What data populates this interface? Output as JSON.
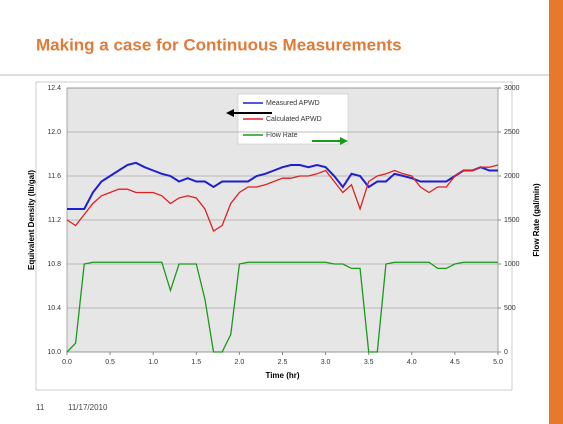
{
  "chart_data": {
    "type": "line",
    "title": "Making a case for Continuous Measurements",
    "xlabel": "Time (hr)",
    "ylabel": "Equivalent Density (lb/gal)",
    "y2label": "Flow Rate (gal/min)",
    "x": [
      0.0,
      0.1,
      0.2,
      0.3,
      0.4,
      0.5,
      0.6,
      0.7,
      0.8,
      0.9,
      1.0,
      1.1,
      1.2,
      1.3,
      1.4,
      1.5,
      1.6,
      1.7,
      1.8,
      1.9,
      2.0,
      2.1,
      2.2,
      2.3,
      2.4,
      2.5,
      2.6,
      2.7,
      2.8,
      2.9,
      3.0,
      3.1,
      3.2,
      3.3,
      3.4,
      3.5,
      3.6,
      3.7,
      3.8,
      3.9,
      4.0,
      4.1,
      4.2,
      4.3,
      4.4,
      4.5,
      4.6,
      4.7,
      4.8,
      4.9,
      5.0
    ],
    "series": [
      {
        "name": "Measured APWD",
        "color": "#1f1fd0",
        "values": [
          11.3,
          11.3,
          11.3,
          11.45,
          11.55,
          11.6,
          11.65,
          11.7,
          11.72,
          11.68,
          11.65,
          11.62,
          11.6,
          11.55,
          11.58,
          11.55,
          11.55,
          11.5,
          11.55,
          11.55,
          11.55,
          11.55,
          11.6,
          11.62,
          11.65,
          11.68,
          11.7,
          11.7,
          11.68,
          11.7,
          11.68,
          11.6,
          11.5,
          11.62,
          11.6,
          11.5,
          11.55,
          11.55,
          11.62,
          11.6,
          11.58,
          11.55,
          11.55,
          11.55,
          11.55,
          11.6,
          11.65,
          11.65,
          11.68,
          11.65,
          11.65
        ]
      },
      {
        "name": "Calculated APWD",
        "color": "#e02020",
        "values": [
          11.2,
          11.15,
          11.25,
          11.35,
          11.42,
          11.45,
          11.48,
          11.48,
          11.45,
          11.45,
          11.45,
          11.42,
          11.35,
          11.4,
          11.42,
          11.4,
          11.3,
          11.1,
          11.15,
          11.35,
          11.45,
          11.5,
          11.5,
          11.52,
          11.55,
          11.58,
          11.58,
          11.6,
          11.6,
          11.62,
          11.65,
          11.55,
          11.45,
          11.52,
          11.3,
          11.55,
          11.6,
          11.62,
          11.65,
          11.62,
          11.6,
          11.5,
          11.45,
          11.5,
          11.5,
          11.6,
          11.65,
          11.65,
          11.68,
          11.68,
          11.7
        ]
      },
      {
        "name": "Flow Rate",
        "color": "#1a9a1a",
        "axis": "y2",
        "values": [
          0,
          100,
          1000,
          1020,
          1020,
          1020,
          1020,
          1020,
          1020,
          1020,
          1020,
          1020,
          700,
          1000,
          1000,
          1000,
          600,
          0,
          0,
          200,
          1000,
          1020,
          1020,
          1020,
          1020,
          1020,
          1020,
          1020,
          1020,
          1020,
          1020,
          1000,
          1000,
          950,
          950,
          0,
          0,
          1000,
          1020,
          1020,
          1020,
          1020,
          1020,
          950,
          950,
          1000,
          1020,
          1020,
          1020,
          1020,
          1020
        ]
      }
    ],
    "xlim": [
      0,
      5
    ],
    "xticks": [
      {
        "value": 0,
        "label": "0.0"
      },
      0.5,
      {
        "value": 1,
        "label": "1.0"
      },
      1.5,
      {
        "value": 2,
        "label": "2.0"
      },
      2.5,
      {
        "value": 3,
        "label": "3.0"
      },
      3.5,
      {
        "value": 4,
        "label": "4.0"
      },
      4.5,
      {
        "value": 5,
        "label": "5.0"
      }
    ],
    "ylim": [
      10,
      12.4
    ],
    "yticks": [
      {
        "value": 10,
        "label": "10.0"
      },
      10.4,
      10.8,
      11.2,
      11.6,
      {
        "value": 12,
        "label": "12.0"
      },
      12.4
    ],
    "y2lim": [
      0,
      3000
    ],
    "y2ticks": [
      0,
      500,
      1000,
      1500,
      2000,
      2500,
      3000
    ],
    "grid": true
  },
  "footer": {
    "page": "11",
    "date": "11/17/2010"
  }
}
